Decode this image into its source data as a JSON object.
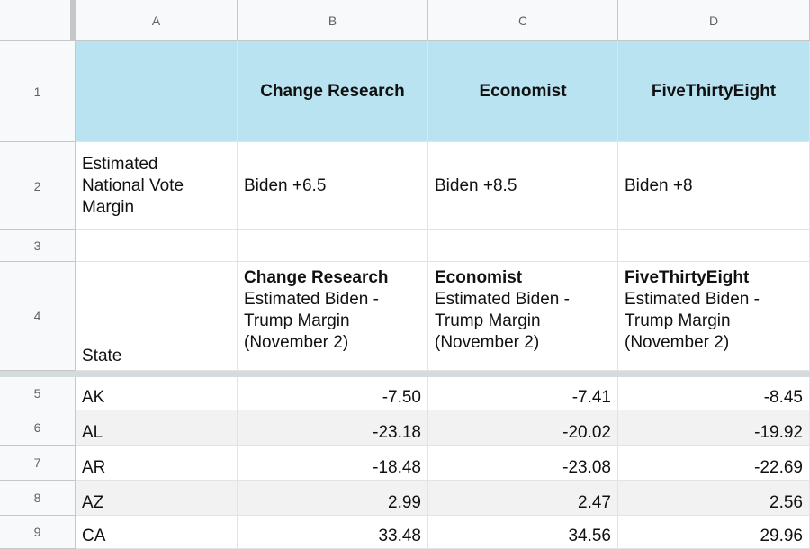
{
  "columns": [
    "A",
    "B",
    "C",
    "D"
  ],
  "rows": [
    "1",
    "2",
    "3",
    "4",
    "5",
    "6",
    "7",
    "8",
    "9"
  ],
  "header_row": {
    "a": "",
    "b": "Change Research",
    "c": "Economist",
    "d": "FiveThirtyEight"
  },
  "national_row": {
    "label": "Estimated National Vote Margin",
    "b": "Biden +6.5",
    "c": "Biden +8.5",
    "d": "Biden +8"
  },
  "column_headers": {
    "a": "State",
    "b": {
      "source": "Change Research",
      "desc": "Estimated Biden - Trump Margin (November 2)"
    },
    "c": {
      "source": "Economist",
      "desc": "Estimated Biden - Trump Margin (November 2)"
    },
    "d": {
      "source": "FiveThirtyEight",
      "desc": "Estimated Biden - Trump Margin (November 2)"
    }
  },
  "data_rows": [
    {
      "state": "AK",
      "b": "-7.50",
      "c": "-7.41",
      "d": "-8.45"
    },
    {
      "state": "AL",
      "b": "-23.18",
      "c": "-20.02",
      "d": "-19.92"
    },
    {
      "state": "AR",
      "b": "-18.48",
      "c": "-23.08",
      "d": "-22.69"
    },
    {
      "state": "AZ",
      "b": "2.99",
      "c": "2.47",
      "d": "2.56"
    },
    {
      "state": "CA",
      "b": "33.48",
      "c": "34.56",
      "d": "29.96"
    }
  ],
  "colors": {
    "header_fill": "#b9e3f0",
    "stripe_fill": "#f2f2f2",
    "grid": "#e2e3e3"
  }
}
